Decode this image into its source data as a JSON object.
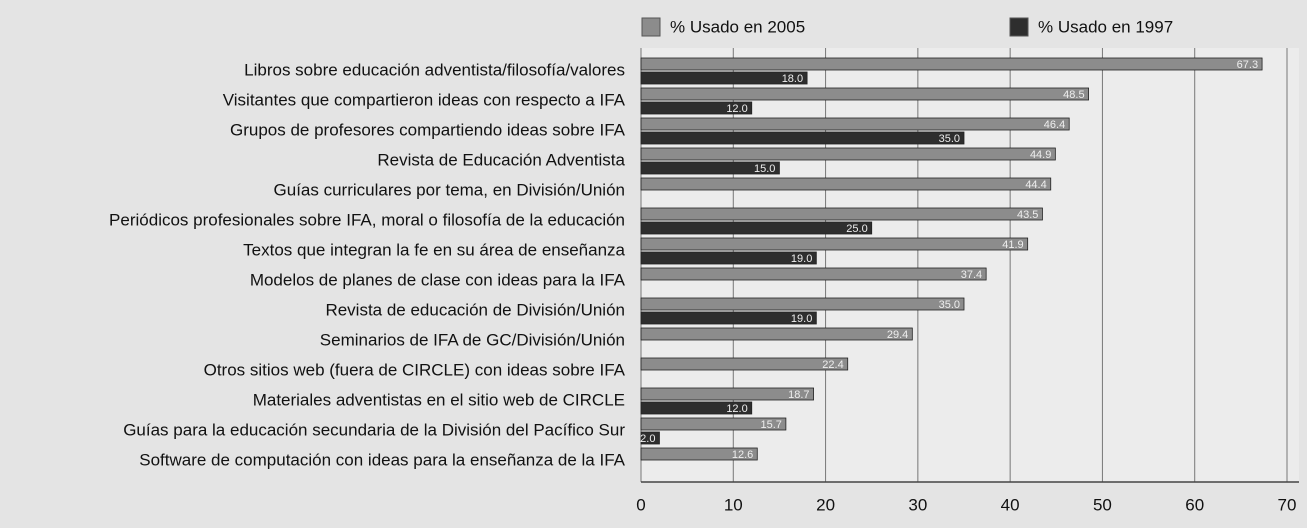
{
  "chart_data": {
    "type": "hbar",
    "categories": [
      "Libros sobre educación adventista/filosofía/valores",
      "Visitantes que compartieron ideas con respecto a IFA",
      "Grupos de profesores compartiendo ideas sobre IFA",
      "Revista de Educación Adventista",
      "Guías curriculares por tema, en División/Unión",
      "Periódicos profesionales sobre IFA, moral o filosofía de la educación",
      "Textos que integran la fe en su área de enseñanza",
      "Modelos de planes de clase con ideas para la IFA",
      "Revista de educación de División/Unión",
      "Seminarios de IFA de GC/División/Unión",
      "Otros sitios web (fuera de CIRCLE) con ideas sobre IFA",
      "Materiales adventistas en el sitio web de CIRCLE",
      "Guías para la educación secundaria de la División del Pacífico Sur",
      "Software de computación con ideas para la enseñanza de la IFA"
    ],
    "series": [
      {
        "name": "% Usado en 2005",
        "color": "#8c8c8c",
        "values": [
          67.3,
          48.5,
          46.4,
          44.9,
          44.4,
          43.5,
          41.9,
          37.4,
          35.0,
          29.4,
          22.4,
          18.7,
          15.7,
          12.6
        ],
        "value_labels": [
          "67.3",
          "48.5",
          "46.4",
          "44.9",
          "44.4",
          "43.5",
          "41.9",
          "37.4",
          "35.0",
          "29.4",
          "22.4",
          "18.7",
          "15.7",
          "12.6"
        ]
      },
      {
        "name": "% Usado en 1997",
        "color": "#2e2e2e",
        "values": [
          18.0,
          12.0,
          35.0,
          15.0,
          null,
          25.0,
          19.0,
          null,
          19.0,
          null,
          null,
          12.0,
          2.0,
          null
        ],
        "value_labels": [
          "18.0",
          "12.0",
          "35.0",
          "15.0",
          null,
          "25.0",
          "19.0",
          null,
          "19.0",
          null,
          null,
          "12.0",
          "2.0",
          null
        ]
      }
    ],
    "xlim": [
      0,
      70
    ],
    "xticks": [
      0,
      10,
      20,
      30,
      40,
      50,
      60,
      70
    ],
    "grid": true
  }
}
